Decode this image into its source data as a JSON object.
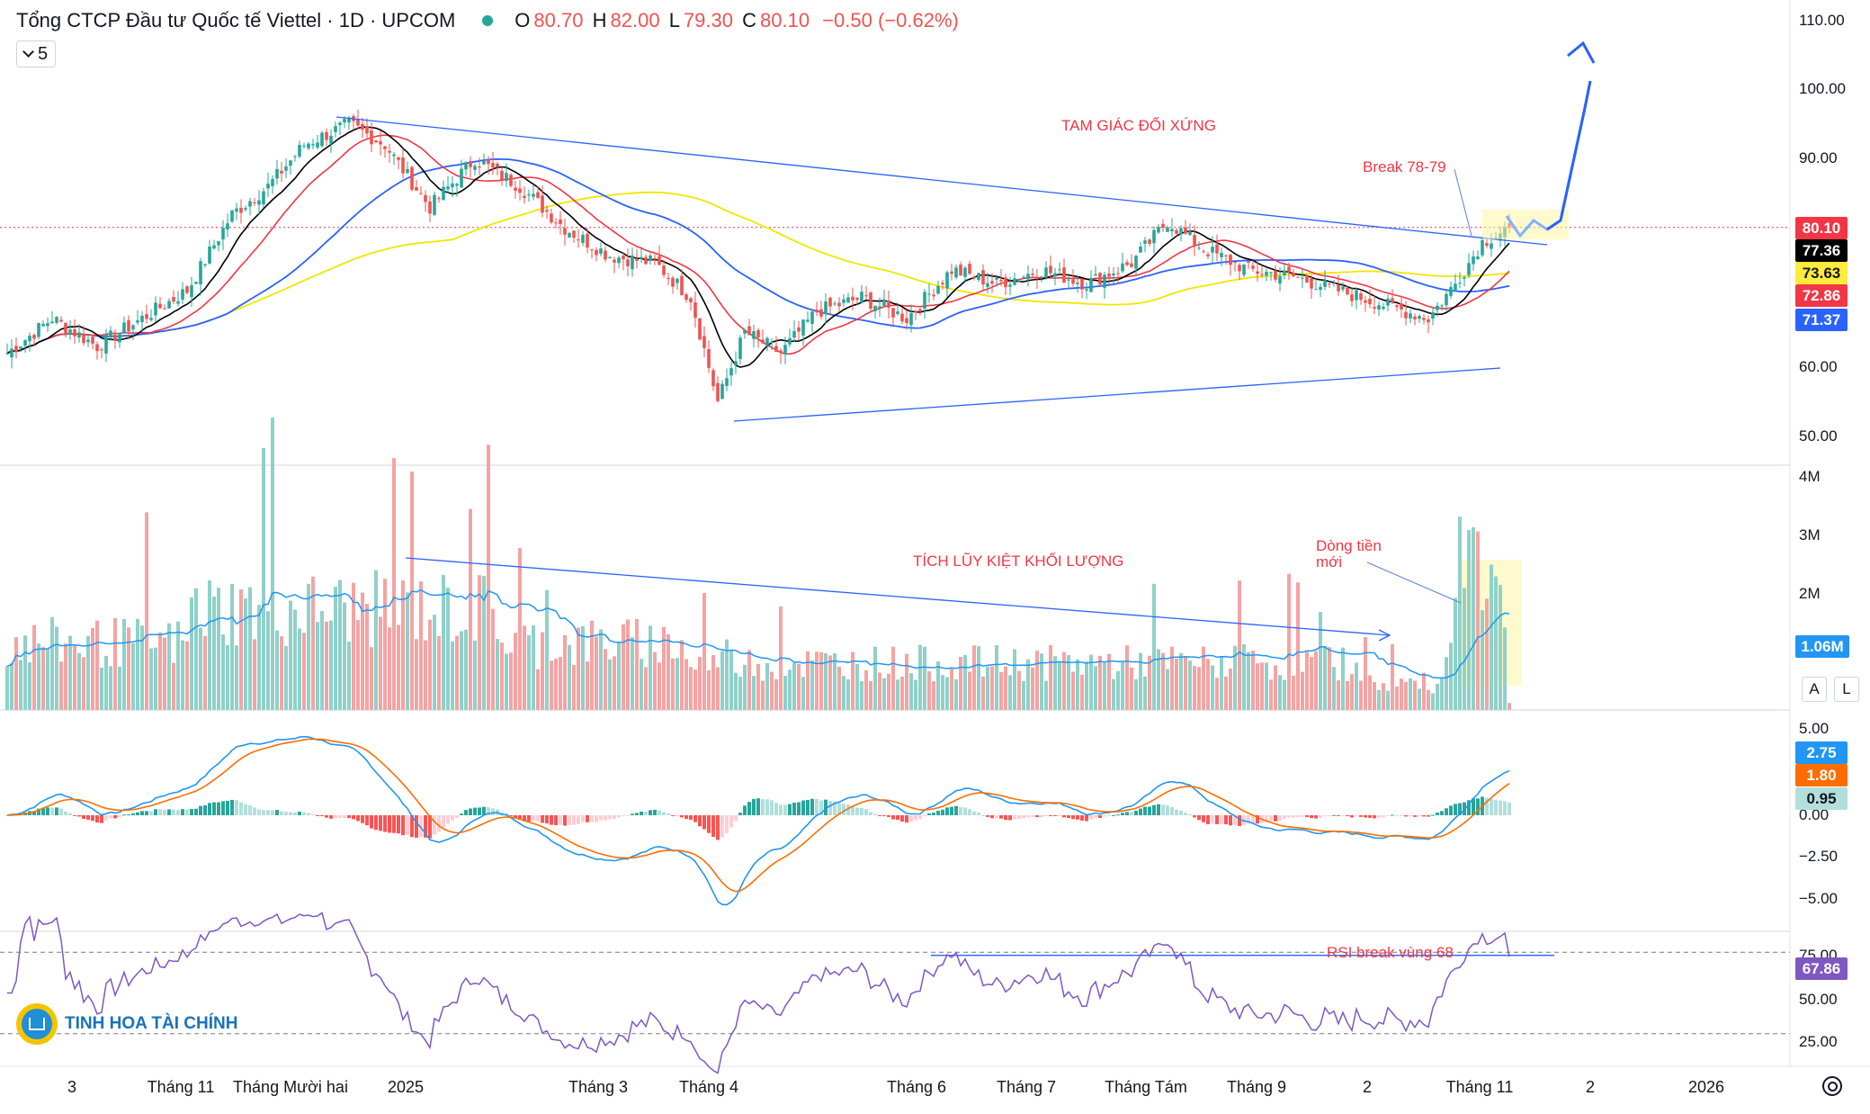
{
  "header": {
    "title": "Tổng CTCP Đầu tư Quốc tế Viettel · 1D · UPCOM",
    "open_label": "O",
    "open": "80.70",
    "high_label": "H",
    "high": "82.00",
    "low_label": "L",
    "low": "79.30",
    "close_label": "C",
    "close": "80.10",
    "change": "−0.50 (−0.62%)",
    "indicator_count": "5"
  },
  "price_axis": [
    "110.00",
    "100.00",
    "90.00",
    "80.00",
    "60.00",
    "50.00"
  ],
  "volume_axis": [
    "4M",
    "3M",
    "2M",
    "1M"
  ],
  "macd_axis": [
    "5.00",
    "2.50",
    "0.00",
    "−2.50",
    "−5.00"
  ],
  "rsi_axis": [
    "75.00",
    "50.00",
    "25.00"
  ],
  "price_tags": [
    {
      "value": "80.10",
      "color": "#f23645"
    },
    {
      "value": "77.36",
      "color": "#000000"
    },
    {
      "value": "73.63",
      "color": "#ffeb3b",
      "text_color": "#131722"
    },
    {
      "value": "72.86",
      "color": "#f23645"
    },
    {
      "value": "71.37",
      "color": "#2962ff"
    }
  ],
  "volume_tag": {
    "value": "1.06M",
    "color": "#2196f3"
  },
  "macd_tags": [
    {
      "value": "2.75",
      "color": "#2196f3"
    },
    {
      "value": "1.80",
      "color": "#ff6d00"
    },
    {
      "value": "0.95",
      "color": "#b2dfdb",
      "text_color": "#131722"
    }
  ],
  "rsi_tag": {
    "value": "67.86",
    "color": "#7e57c2"
  },
  "buttons": {
    "auto": "A",
    "log": "L"
  },
  "x_labels": [
    "3",
    "Tháng 11",
    "Tháng Mười hai",
    "2025",
    "Tháng 3",
    "Tháng 4",
    "Tháng 6",
    "Tháng 7",
    "Tháng Tám",
    "Tháng 9",
    "2",
    "Tháng 11",
    "2",
    "2026"
  ],
  "annotations": {
    "triangle": "TAM GIÁC ĐỐI XỨNG",
    "break": "Break 78-79",
    "volume_accum": "TÍCH LŨY KIỆT KHỐI LƯỢNG",
    "new_money_1": "Dòng tiền",
    "new_money_2": "mới",
    "rsi_break": "RSI break vùng 68"
  },
  "logo_text": "TINH HOA TÀI CHÍNH",
  "colors": {
    "up": "#26a69a",
    "down": "#ef5350",
    "ma_short": "#000000",
    "ma_red": "#f23645",
    "ma_blue": "#2962ff",
    "ma_yellow": "#f2e600",
    "trend": "#2962ff",
    "rsi": "#7e57c2",
    "macd": "#2196f3",
    "signal": "#ff6d00"
  },
  "chart_data": {
    "type": "candlestick",
    "title": "Tổng CTCP Đầu tư Quốc tế Viettel · 1D · UPCOM",
    "price_ylim": [
      45,
      112
    ],
    "price_keypoints": [
      {
        "x": 0,
        "close": 62
      },
      {
        "x": 10,
        "close": 67
      },
      {
        "x": 20,
        "close": 63
      },
      {
        "x": 30,
        "close": 67
      },
      {
        "x": 40,
        "close": 71
      },
      {
        "x": 50,
        "close": 82
      },
      {
        "x": 58,
        "close": 86
      },
      {
        "x": 66,
        "close": 92
      },
      {
        "x": 76,
        "close": 95
      },
      {
        "x": 84,
        "close": 92
      },
      {
        "x": 94,
        "close": 83
      },
      {
        "x": 104,
        "close": 90
      },
      {
        "x": 114,
        "close": 86
      },
      {
        "x": 124,
        "close": 80
      },
      {
        "x": 134,
        "close": 76
      },
      {
        "x": 144,
        "close": 75
      },
      {
        "x": 152,
        "close": 70
      },
      {
        "x": 158,
        "close": 55
      },
      {
        "x": 164,
        "close": 65
      },
      {
        "x": 172,
        "close": 62
      },
      {
        "x": 180,
        "close": 68
      },
      {
        "x": 190,
        "close": 70
      },
      {
        "x": 200,
        "close": 67
      },
      {
        "x": 210,
        "close": 74
      },
      {
        "x": 220,
        "close": 72
      },
      {
        "x": 230,
        "close": 74
      },
      {
        "x": 240,
        "close": 72
      },
      {
        "x": 250,
        "close": 75
      },
      {
        "x": 258,
        "close": 81
      },
      {
        "x": 266,
        "close": 77
      },
      {
        "x": 276,
        "close": 74
      },
      {
        "x": 286,
        "close": 73
      },
      {
        "x": 296,
        "close": 71
      },
      {
        "x": 306,
        "close": 69
      },
      {
        "x": 316,
        "close": 67
      },
      {
        "x": 322,
        "close": 72
      },
      {
        "x": 328,
        "close": 78
      },
      {
        "x": 334,
        "close": 80.1
      }
    ],
    "last_candle": {
      "open": 80.7,
      "high": 82.0,
      "low": 79.3,
      "close": 80.1,
      "change": -0.5,
      "change_pct": -0.62
    },
    "moving_averages": [
      {
        "color": "black",
        "last": 77.36
      },
      {
        "color": "yellow",
        "last": 73.63
      },
      {
        "color": "red",
        "last": 72.86
      },
      {
        "color": "blue",
        "last": 71.37
      }
    ],
    "volume": {
      "ylim": [
        0,
        4000000
      ],
      "last_ma": 1060000
    },
    "macd": {
      "ylim": [
        -6,
        6
      ],
      "macd": 2.75,
      "signal": 1.8,
      "histogram": 0.95
    },
    "rsi": {
      "ylim": [
        15,
        85
      ],
      "value": 67.86,
      "levels": [
        70,
        30
      ]
    },
    "x_ticks": [
      "3",
      "Tháng 11",
      "Tháng Mười hai",
      "2025",
      "Tháng 3",
      "Tháng 4",
      "Tháng 6",
      "Tháng 7",
      "Tháng Tám",
      "Tháng 9",
      "2",
      "Tháng 11",
      "2",
      "2026"
    ]
  }
}
